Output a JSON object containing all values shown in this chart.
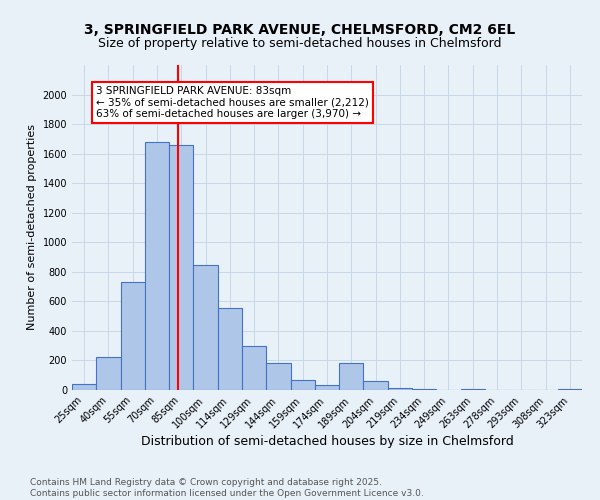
{
  "title": "3, SPRINGFIELD PARK AVENUE, CHELMSFORD, CM2 6EL",
  "subtitle": "Size of property relative to semi-detached houses in Chelmsford",
  "xlabel": "Distribution of semi-detached houses by size in Chelmsford",
  "ylabel": "Number of semi-detached properties",
  "categories": [
    "25sqm",
    "40sqm",
    "55sqm",
    "70sqm",
    "85sqm",
    "100sqm",
    "114sqm",
    "129sqm",
    "144sqm",
    "159sqm",
    "174sqm",
    "189sqm",
    "204sqm",
    "219sqm",
    "234sqm",
    "249sqm",
    "263sqm",
    "278sqm",
    "293sqm",
    "308sqm",
    "323sqm"
  ],
  "values": [
    40,
    225,
    730,
    1680,
    1660,
    845,
    555,
    300,
    185,
    65,
    35,
    185,
    60,
    15,
    10,
    0,
    10,
    0,
    0,
    0,
    5
  ],
  "bar_color": "#aec6e8",
  "bar_edge_color": "#4472c4",
  "bar_width": 1.0,
  "vline_color": "red",
  "annotation_text": "3 SPRINGFIELD PARK AVENUE: 83sqm\n← 35% of semi-detached houses are smaller (2,212)\n63% of semi-detached houses are larger (3,970) →",
  "annotation_box_color": "white",
  "annotation_box_edge": "red",
  "ylim": [
    0,
    2200
  ],
  "yticks": [
    0,
    200,
    400,
    600,
    800,
    1000,
    1200,
    1400,
    1600,
    1800,
    2000
  ],
  "grid_color": "#c8d8e8",
  "background_color": "#e8f0f8",
  "footer_line1": "Contains HM Land Registry data © Crown copyright and database right 2025.",
  "footer_line2": "Contains public sector information licensed under the Open Government Licence v3.0.",
  "title_fontsize": 10,
  "subtitle_fontsize": 9,
  "xlabel_fontsize": 9,
  "ylabel_fontsize": 8,
  "tick_fontsize": 7,
  "annotation_fontsize": 7.5,
  "footer_fontsize": 6.5
}
